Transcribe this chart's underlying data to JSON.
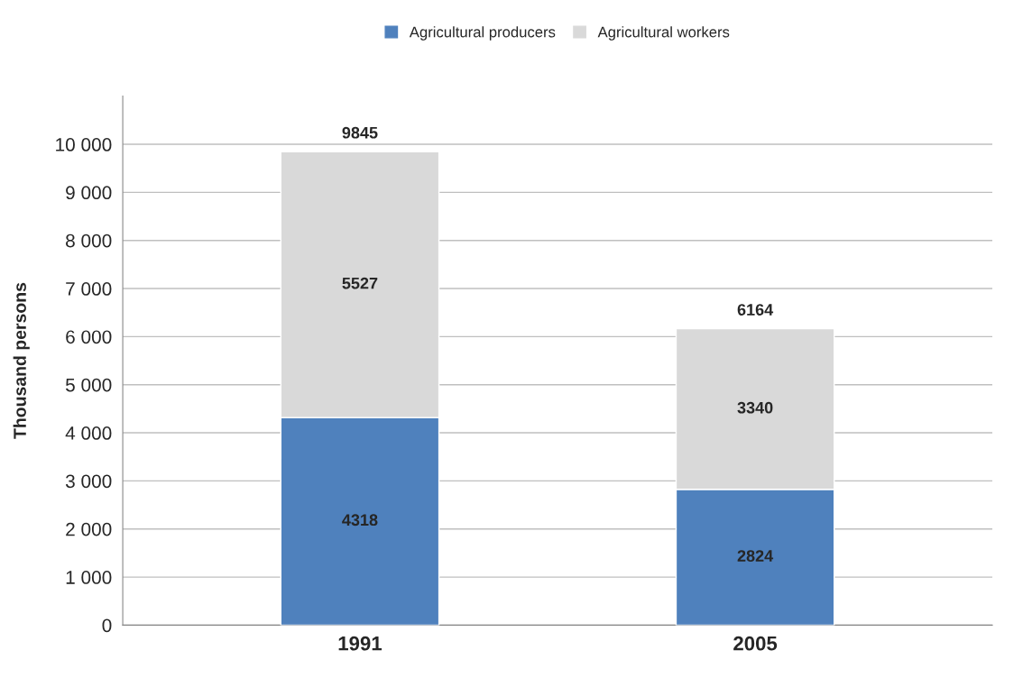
{
  "chart_data": {
    "type": "bar",
    "stacked": true,
    "ylabel": "Thousand persons",
    "categories": [
      "1991",
      "2005"
    ],
    "series": [
      {
        "name": "Agricultural producers",
        "color": "#4f81bd",
        "values": [
          4318,
          2824
        ]
      },
      {
        "name": "Agricultural workers",
        "color": "#d9d9d9",
        "values": [
          5527,
          3340
        ]
      }
    ],
    "data_labels": true,
    "totals": [
      "9845",
      "6164"
    ],
    "ylim": [
      0,
      11000
    ],
    "yticks": [
      0,
      {
        "value": 1000,
        "label": "1 000"
      },
      {
        "value": 2000,
        "label": "2 000"
      },
      {
        "value": 3000,
        "label": "3 000"
      },
      {
        "value": 4000,
        "label": "4 000"
      },
      {
        "value": 5000,
        "label": "5 000"
      },
      {
        "value": 6000,
        "label": "6 000"
      },
      {
        "value": 7000,
        "label": "7 000"
      },
      {
        "value": 8000,
        "label": "8 000"
      },
      {
        "value": 9000,
        "label": "9 000"
      },
      {
        "value": 10000,
        "label": "10 000"
      }
    ],
    "grid": "y",
    "legend": "top"
  }
}
